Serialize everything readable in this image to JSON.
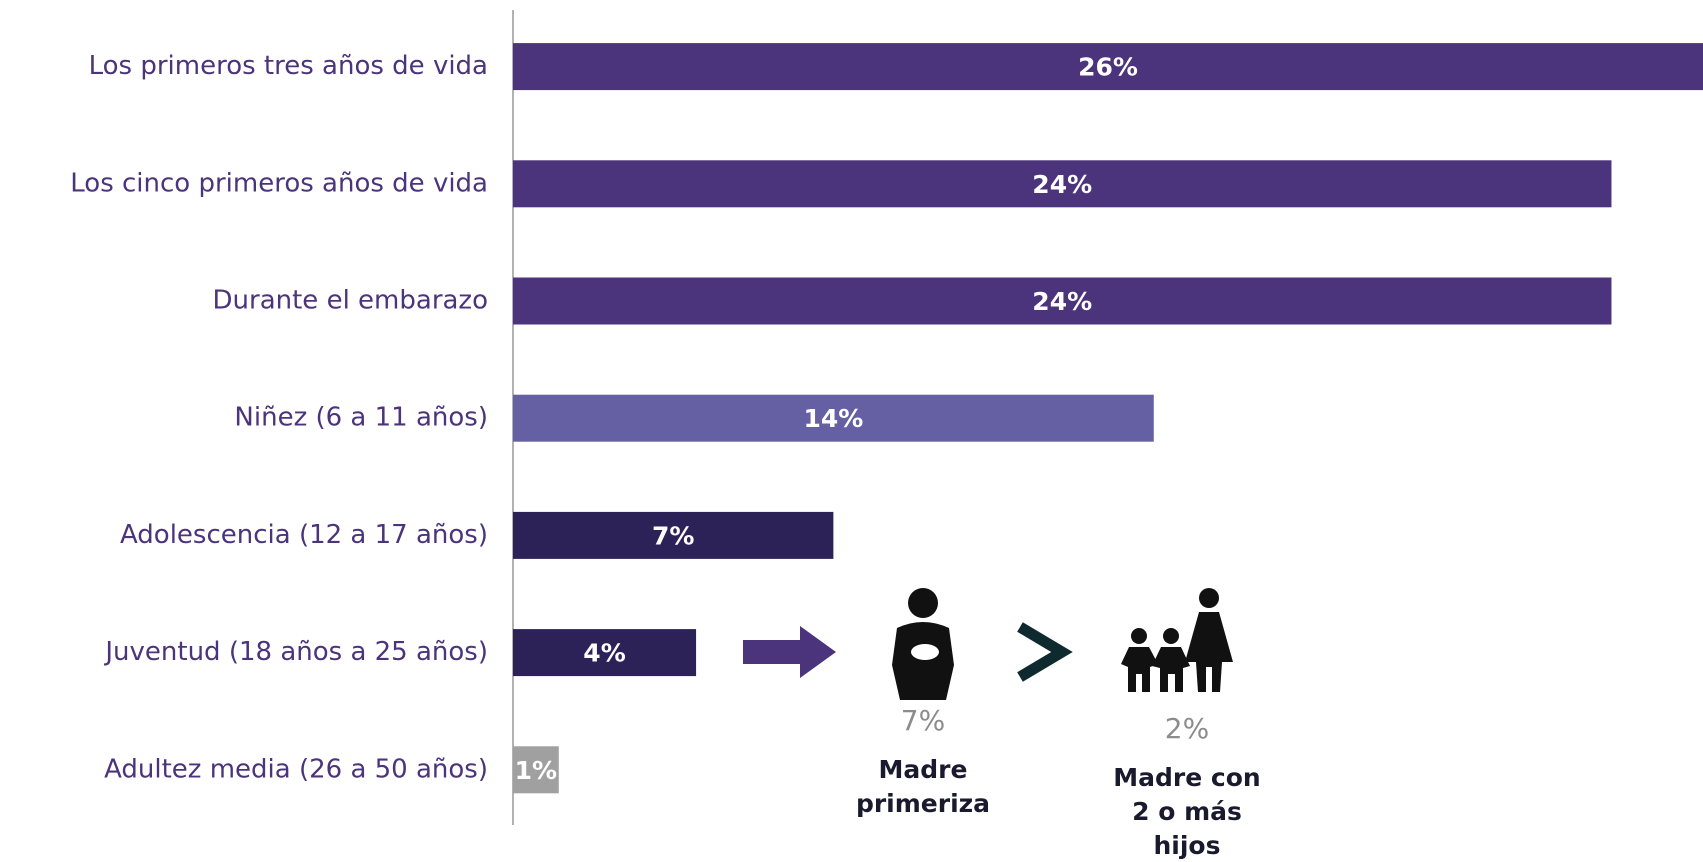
{
  "chart_data": {
    "type": "hbar",
    "categories": [
      "Los primeros tres años de vida",
      "Los cinco primeros años de vida",
      "Durante el embarazo",
      "Niñez (6 a 11 años)",
      "Adolescencia (12 a 17 años)",
      "Juventud (18 años a 25 años)",
      "Adultez media (26 a 50 años)"
    ],
    "values": [
      26,
      24,
      24,
      14,
      7,
      4,
      1
    ],
    "value_labels": [
      "26%",
      "24%",
      "24%",
      "14%",
      "7%",
      "4%",
      "1%"
    ],
    "colors": [
      "#4b347c",
      "#4b347c",
      "#4b347c",
      "#6560a3",
      "#2c2257",
      "#2c2257",
      "#a0a0a0"
    ],
    "xlim": [
      0,
      26
    ],
    "annotations": [
      {
        "value": 7,
        "value_label": "7%",
        "lines": [
          "Madre",
          "primeriza"
        ]
      },
      {
        "value": 2,
        "value_label": "2%",
        "lines": [
          "Madre con",
          "2 o más",
          "hijos"
        ]
      }
    ]
  }
}
